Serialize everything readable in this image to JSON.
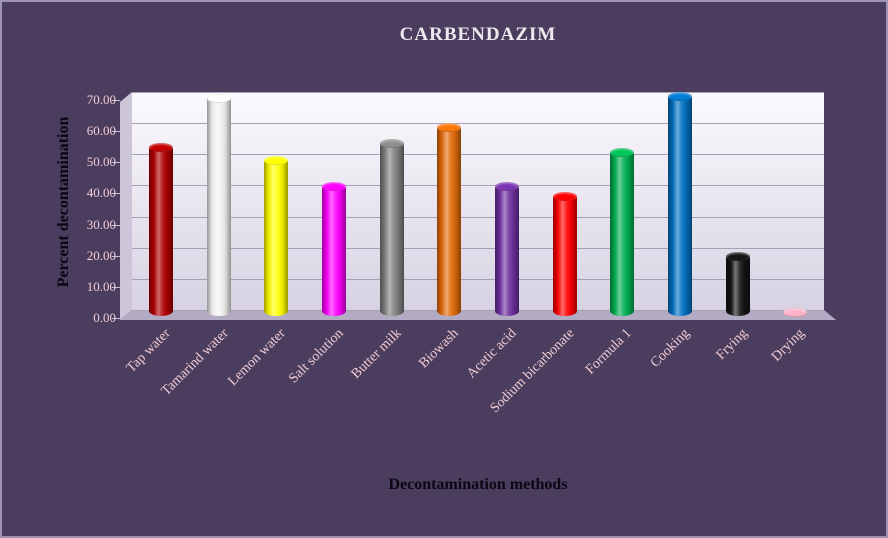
{
  "chart_data": {
    "type": "bar",
    "subtype": "3d-cylinder",
    "title": "CARBENDAZIM",
    "xlabel": "Decontamination methods",
    "ylabel": "Percent decontamination",
    "ylim": [
      0,
      70
    ],
    "ytick_step": 10,
    "ytick_labels": [
      "0.00",
      "10.00",
      "20.00",
      "30.00",
      "40.00",
      "50.00",
      "60.00",
      "70.00"
    ],
    "categories": [
      "Tap water",
      "Tamarind water",
      "Lemon water",
      "Salt solution",
      "Butter milk",
      "Biowash",
      "Acetic acid",
      "Sodium bicarbonate",
      "Formula 1",
      "Cooking",
      "Frying",
      "Drying"
    ],
    "values": [
      54,
      70,
      50,
      41.5,
      55.5,
      60.5,
      41.5,
      38.5,
      52.5,
      70.5,
      19,
      1
    ],
    "bar_colors": [
      "#b00000",
      "#f2f2f2",
      "#ffff00",
      "#ff00ff",
      "#808080",
      "#e26b0a",
      "#7030a0",
      "#ff0000",
      "#00b050",
      "#0070c0",
      "#141414",
      "#f4a0b5"
    ],
    "grid": true,
    "legend": "none",
    "theme": {
      "background": "#4a3d5e",
      "wall_top": "#fbfafd",
      "wall_bottom": "#d7d2e2",
      "floor": "#b3abc3",
      "side_wall": "#cdc6d9",
      "gridline": "#a79fb8",
      "tick_label_color": "#f2ccd4",
      "category_label_color": "#f2ccd4",
      "title_color": "#efe8ef",
      "axis_title_color": "#0a0612"
    }
  }
}
